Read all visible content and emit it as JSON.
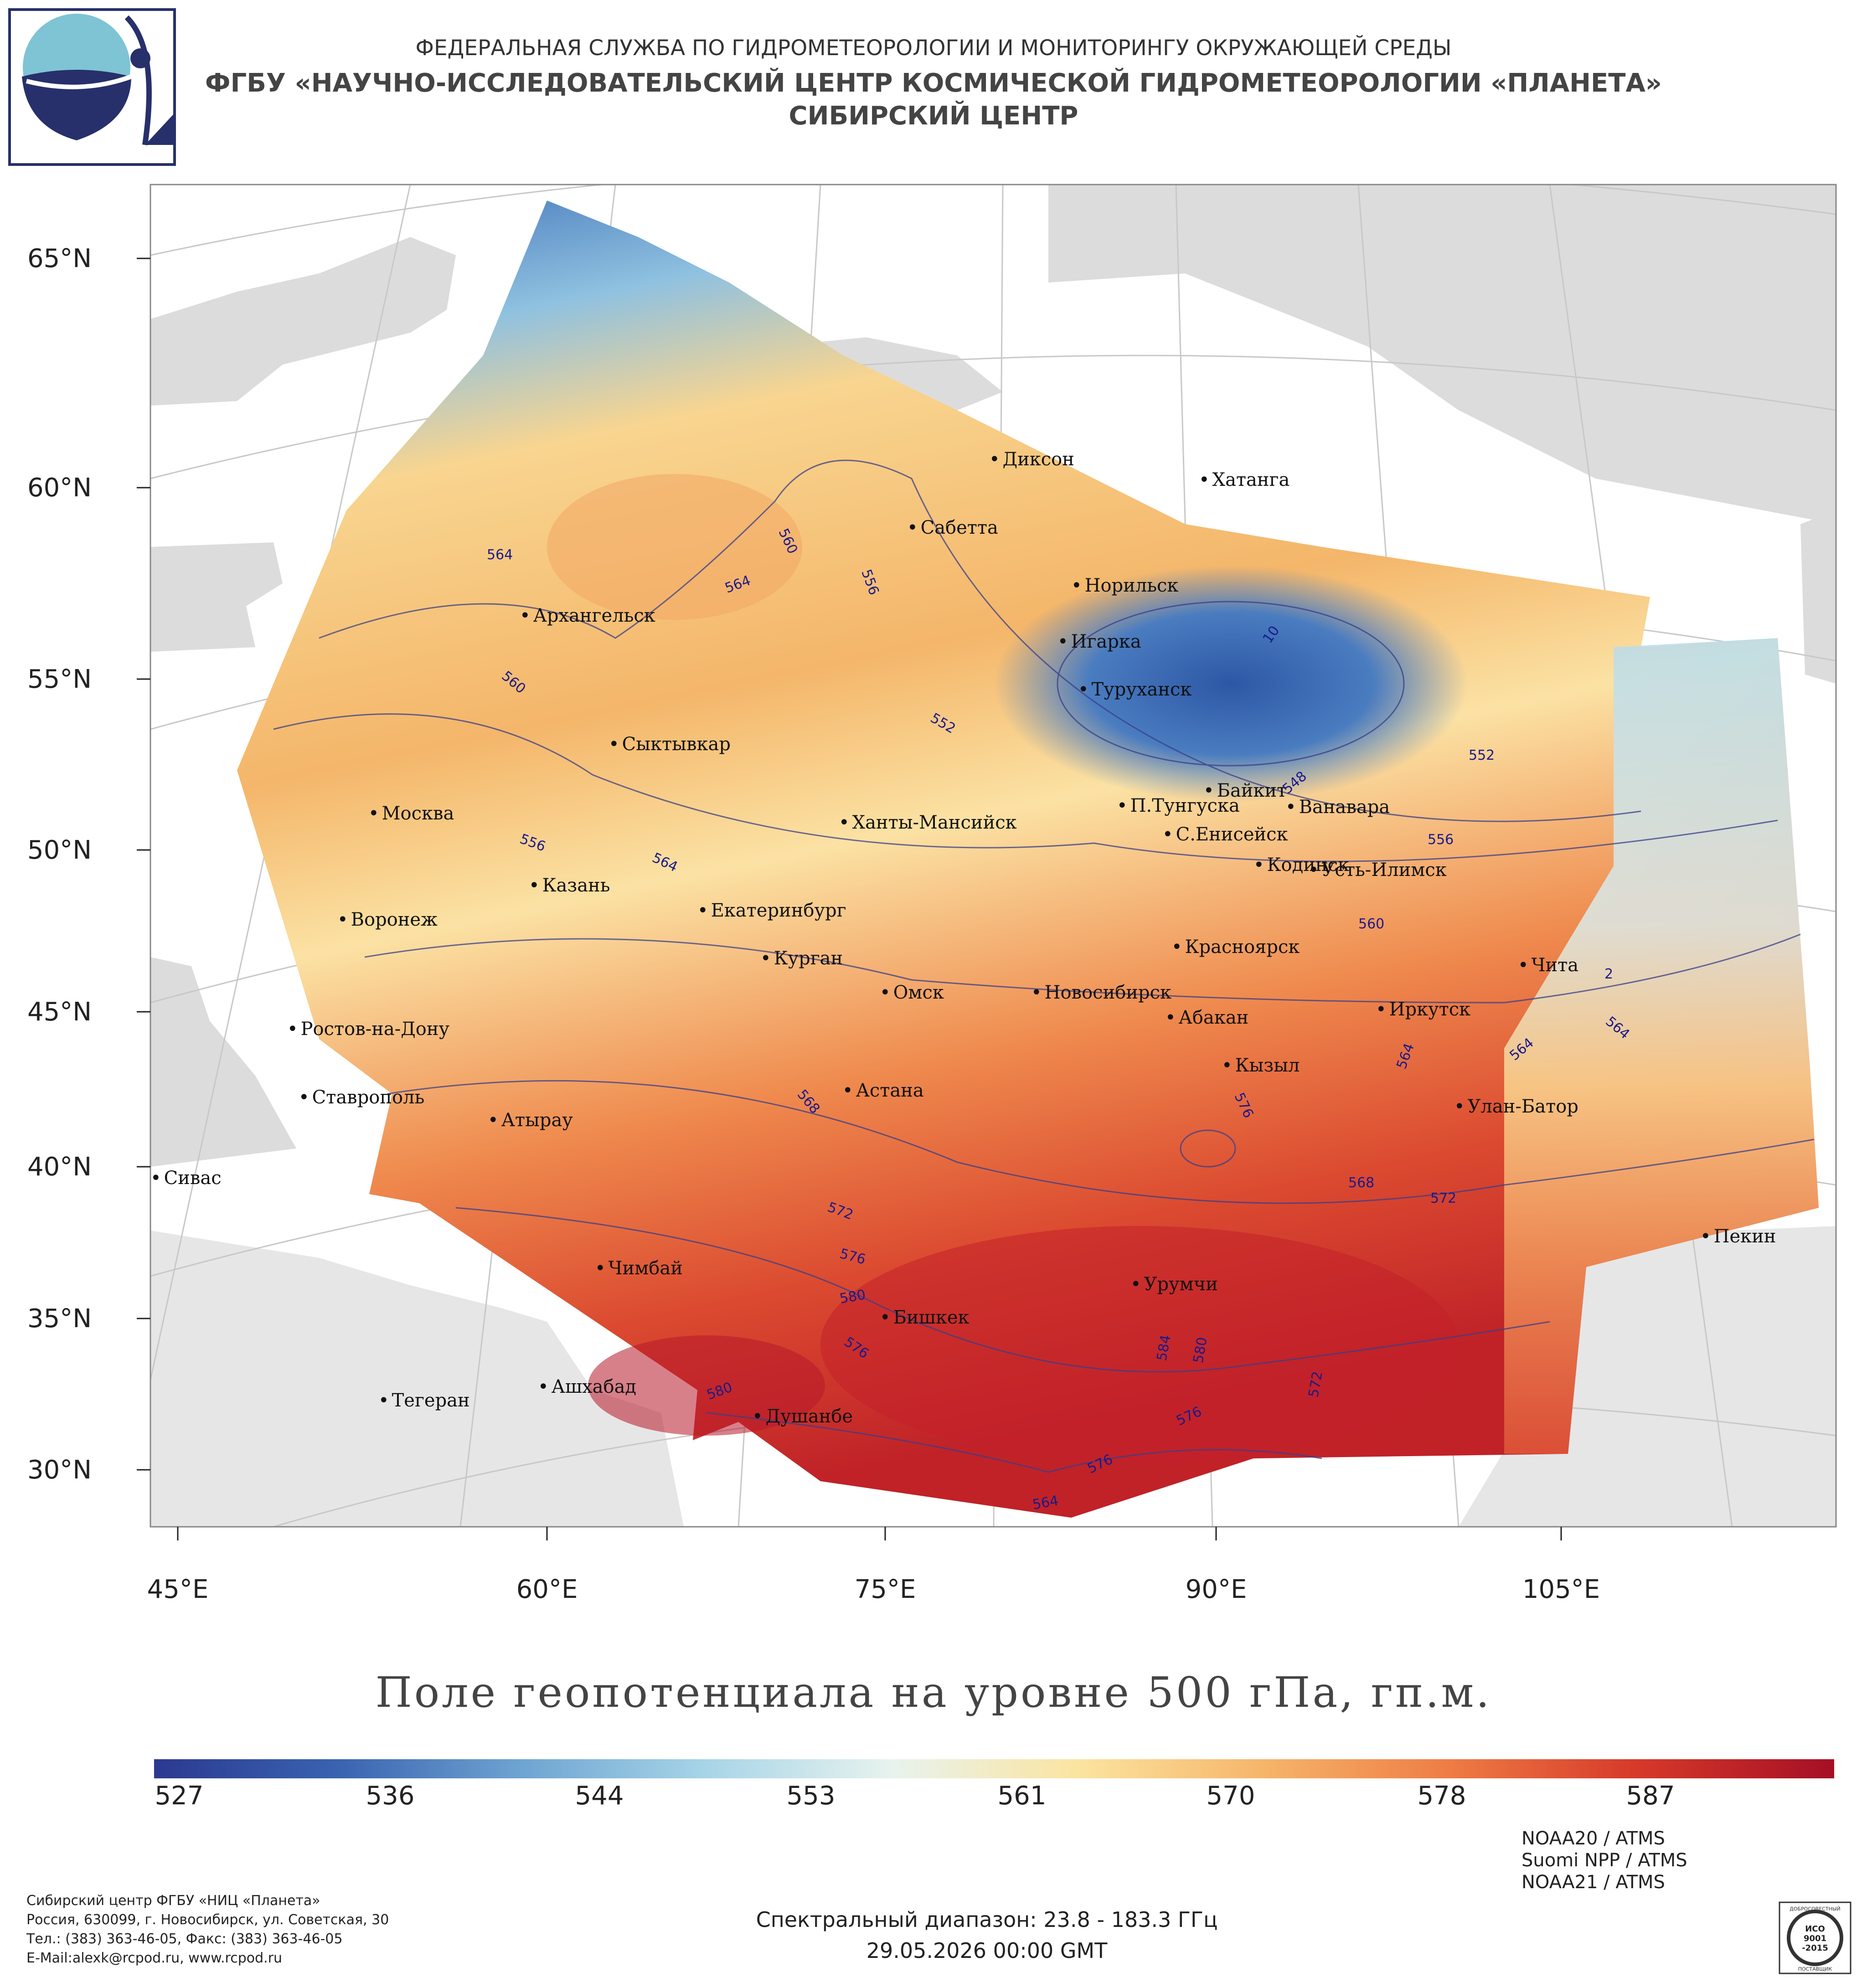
{
  "header": {
    "line1": "ФЕДЕРАЛЬНАЯ СЛУЖБА ПО ГИДРОМЕТЕОРОЛОГИИ И МОНИТОРИНГУ ОКРУЖАЮЩЕЙ СРЕДЫ",
    "line2": "ФГБУ «НАУЧНО-ИССЛЕДОВАТЕЛЬСКИЙ ЦЕНТР КОСМИЧЕСКОЙ ГИДРОМЕТЕОРОЛОГИИ «ПЛАНЕТА»",
    "line3": "СИБИРСКИЙ ЦЕНТР"
  },
  "map": {
    "lat_labels": [
      "65°N",
      "60°N",
      "55°N",
      "50°N",
      "45°N",
      "40°N",
      "35°N",
      "30°N"
    ],
    "lon_labels": [
      "45°E",
      "60°E",
      "75°E",
      "90°E",
      "105°E"
    ],
    "cities": [
      "Диксон",
      "Хатанга",
      "Сабетта",
      "Норильск",
      "Игарка",
      "Туруханск",
      "Архангельск",
      "Сыктывкар",
      "Байкит",
      "П.Тунгуска",
      "Ванавара",
      "С.Енисейск",
      "Москва",
      "Ханты-Мансийск",
      "Кодинск",
      "Усть-Илимск",
      "Казань",
      "Екатеринбург",
      "Воронеж",
      "Красноярск",
      "Курган",
      "Чита",
      "Омск",
      "Новосибирск",
      "Ростов-на-Дону",
      "Абакан",
      "Иркутск",
      "Кызыл",
      "Астана",
      "Ставрополь",
      "Улан-Батор",
      "Атырау",
      "Сивас",
      "Пекин",
      "Чимбай",
      "Урумчи",
      "Бишкек",
      "Ашхабад",
      "Тегеран",
      "Душанбе"
    ],
    "contour_labels": [
      "564",
      "560",
      "564",
      "556",
      "560",
      "552",
      "548",
      "552",
      "556",
      "556",
      "564",
      "560",
      "564",
      "564",
      "564",
      "568",
      "576",
      "568",
      "572",
      "572",
      "576",
      "580",
      "576",
      "580",
      "584",
      "580",
      "572",
      "576",
      "576",
      "564",
      "10",
      "2"
    ]
  },
  "title": "Поле геопотенциала на уровне 500 гПа, гп.м.",
  "colorbar": {
    "ticks": [
      "527",
      "536",
      "544",
      "553",
      "561",
      "570",
      "578",
      "587"
    ],
    "colors": [
      "#2b3990",
      "#3a63b0",
      "#6fa5d2",
      "#a8d5e8",
      "#e8f3ee",
      "#fbe4a0",
      "#f6b56a",
      "#ee7d45",
      "#d73a2a",
      "#a50f25"
    ]
  },
  "footer": {
    "org": [
      "Сибирский центр ФГБУ «НИЦ «Планета»",
      "Россия, 630099, г. Новосибирск, ул. Советская, 30",
      "Тел.: (383) 363-46-05, Факс: (383) 363-46-05",
      "E-Mail:alexk@rcpod.ru, www.rcpod.ru"
    ],
    "satellites": [
      "NOAA20 / ATMS",
      "Suomi NPP / ATMS",
      "NOAA21 / ATMS"
    ],
    "spectral": "Спектральный диапазон: 23.8 - 183.3 ГГц",
    "datetime": "29.05.2026 00:00 GMT"
  },
  "iso_badge": [
    "ДОБРОСОВЕСТНЫЙ",
    "ИСО",
    "9001",
    "-2015",
    "ПОСТАВЩИК"
  ]
}
